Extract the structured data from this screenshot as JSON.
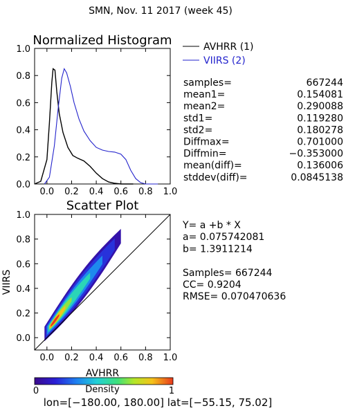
{
  "header": {
    "title": "SMN,  Nov. 11 2017 (week 45)"
  },
  "colors": {
    "avhrr": "#000000",
    "viirs": "#2222cc",
    "axis": "#000000"
  },
  "histogram": {
    "legend": [
      {
        "label": "AVHRR (1)",
        "color": "#000000"
      },
      {
        "label": "VIIRS (2)",
        "color": "#2222cc"
      }
    ],
    "stats": [
      {
        "label": "samples=",
        "value": "667244"
      },
      {
        "label": "mean1=",
        "value": "0.154081"
      },
      {
        "label": "mean2=",
        "value": "0.290088"
      },
      {
        "label": "std1=",
        "value": "0.119280"
      },
      {
        "label": "std2=",
        "value": "0.180278"
      },
      {
        "label": "Diffmax=",
        "value": "0.701000"
      },
      {
        "label": "Diffmin=",
        "value": "−0.353000"
      },
      {
        "label": "mean(diff)=",
        "value": "0.136006"
      },
      {
        "label": "stddev(diff)=",
        "value": "0.0845138"
      }
    ]
  },
  "scatter": {
    "fit_lines": [
      "Y= a +b * X",
      "a= 0.075742081",
      "b= 1.3911214",
      "",
      "Samples= 667244",
      "CC=  0.9204",
      "RMSE= 0.070470636"
    ]
  },
  "colorbar": {
    "label": "Density",
    "min_label": "0",
    "max_label": "1"
  },
  "footer": {
    "range_text": "lon=[−180.00, 180.00] lat=[−55.15, 75.02]"
  },
  "chart_data": [
    {
      "type": "line",
      "title": "Normalized Histogram",
      "xlabel": "",
      "ylabel": "",
      "xlim": [
        -0.1,
        1.0
      ],
      "ylim": [
        0.0,
        1.0
      ],
      "xticks": [
        "0.0",
        "0.2",
        "0.4",
        "0.6",
        "0.8",
        "1.0"
      ],
      "yticks": [
        "0.0",
        "0.2",
        "0.4",
        "0.6",
        "0.8",
        "1.0"
      ],
      "grid": false,
      "legend": "right",
      "series": [
        {
          "name": "AVHRR (1)",
          "color": "#000000",
          "points": [
            [
              -0.1,
              0.0
            ],
            [
              -0.05,
              0.02
            ],
            [
              0.0,
              0.18
            ],
            [
              0.02,
              0.45
            ],
            [
              0.04,
              0.75
            ],
            [
              0.05,
              0.85
            ],
            [
              0.065,
              0.84
            ],
            [
              0.08,
              0.68
            ],
            [
              0.1,
              0.52
            ],
            [
              0.13,
              0.38
            ],
            [
              0.17,
              0.27
            ],
            [
              0.21,
              0.21
            ],
            [
              0.25,
              0.19
            ],
            [
              0.3,
              0.17
            ],
            [
              0.35,
              0.13
            ],
            [
              0.4,
              0.08
            ],
            [
              0.45,
              0.04
            ],
            [
              0.5,
              0.015
            ],
            [
              0.55,
              0.005
            ],
            [
              0.6,
              0.0
            ],
            [
              0.7,
              0.0
            ]
          ]
        },
        {
          "name": "VIIRS (2)",
          "color": "#2222cc",
          "points": [
            [
              -0.02,
              0.0
            ],
            [
              0.02,
              0.05
            ],
            [
              0.06,
              0.28
            ],
            [
              0.09,
              0.55
            ],
            [
              0.12,
              0.78
            ],
            [
              0.14,
              0.85
            ],
            [
              0.16,
              0.82
            ],
            [
              0.19,
              0.72
            ],
            [
              0.22,
              0.6
            ],
            [
              0.26,
              0.48
            ],
            [
              0.3,
              0.39
            ],
            [
              0.35,
              0.32
            ],
            [
              0.4,
              0.27
            ],
            [
              0.45,
              0.25
            ],
            [
              0.5,
              0.24
            ],
            [
              0.55,
              0.235
            ],
            [
              0.6,
              0.22
            ],
            [
              0.64,
              0.18
            ],
            [
              0.68,
              0.1
            ],
            [
              0.72,
              0.04
            ],
            [
              0.76,
              0.01
            ],
            [
              0.8,
              0.0
            ],
            [
              0.9,
              0.0
            ]
          ]
        }
      ]
    },
    {
      "type": "scatter",
      "title": "Scatter Plot",
      "xlabel": "AVHRR",
      "ylabel": "VIIRS",
      "xlim": [
        -0.1,
        1.0
      ],
      "ylim": [
        -0.1,
        1.0
      ],
      "xticks": [
        "0.0",
        "0.2",
        "0.4",
        "0.6",
        "0.8",
        "1.0"
      ],
      "yticks": [
        "0.0",
        "0.2",
        "0.4",
        "0.6",
        "0.8",
        "1.0"
      ],
      "grid": false,
      "reference_line": {
        "from": [
          -0.1,
          -0.1
        ],
        "to": [
          1.0,
          1.0
        ]
      },
      "fit": {
        "a": 0.075742081,
        "b": 1.3911214
      },
      "density_bands": [
        {
          "density": 0.06,
          "x_min": -0.02,
          "x_max": 0.6,
          "half_width": 0.12
        },
        {
          "density": 0.18,
          "x_min": -0.01,
          "x_max": 0.55,
          "half_width": 0.095
        },
        {
          "density": 0.32,
          "x_min": 0.0,
          "x_max": 0.45,
          "half_width": 0.07
        },
        {
          "density": 0.5,
          "x_min": 0.01,
          "x_max": 0.35,
          "half_width": 0.05
        },
        {
          "density": 0.68,
          "x_min": 0.02,
          "x_max": 0.2,
          "half_width": 0.035
        },
        {
          "density": 0.85,
          "x_min": 0.02,
          "x_max": 0.15,
          "half_width": 0.025
        },
        {
          "density": 1.0,
          "x_min": 0.03,
          "x_max": 0.1,
          "half_width": 0.015
        }
      ]
    }
  ]
}
